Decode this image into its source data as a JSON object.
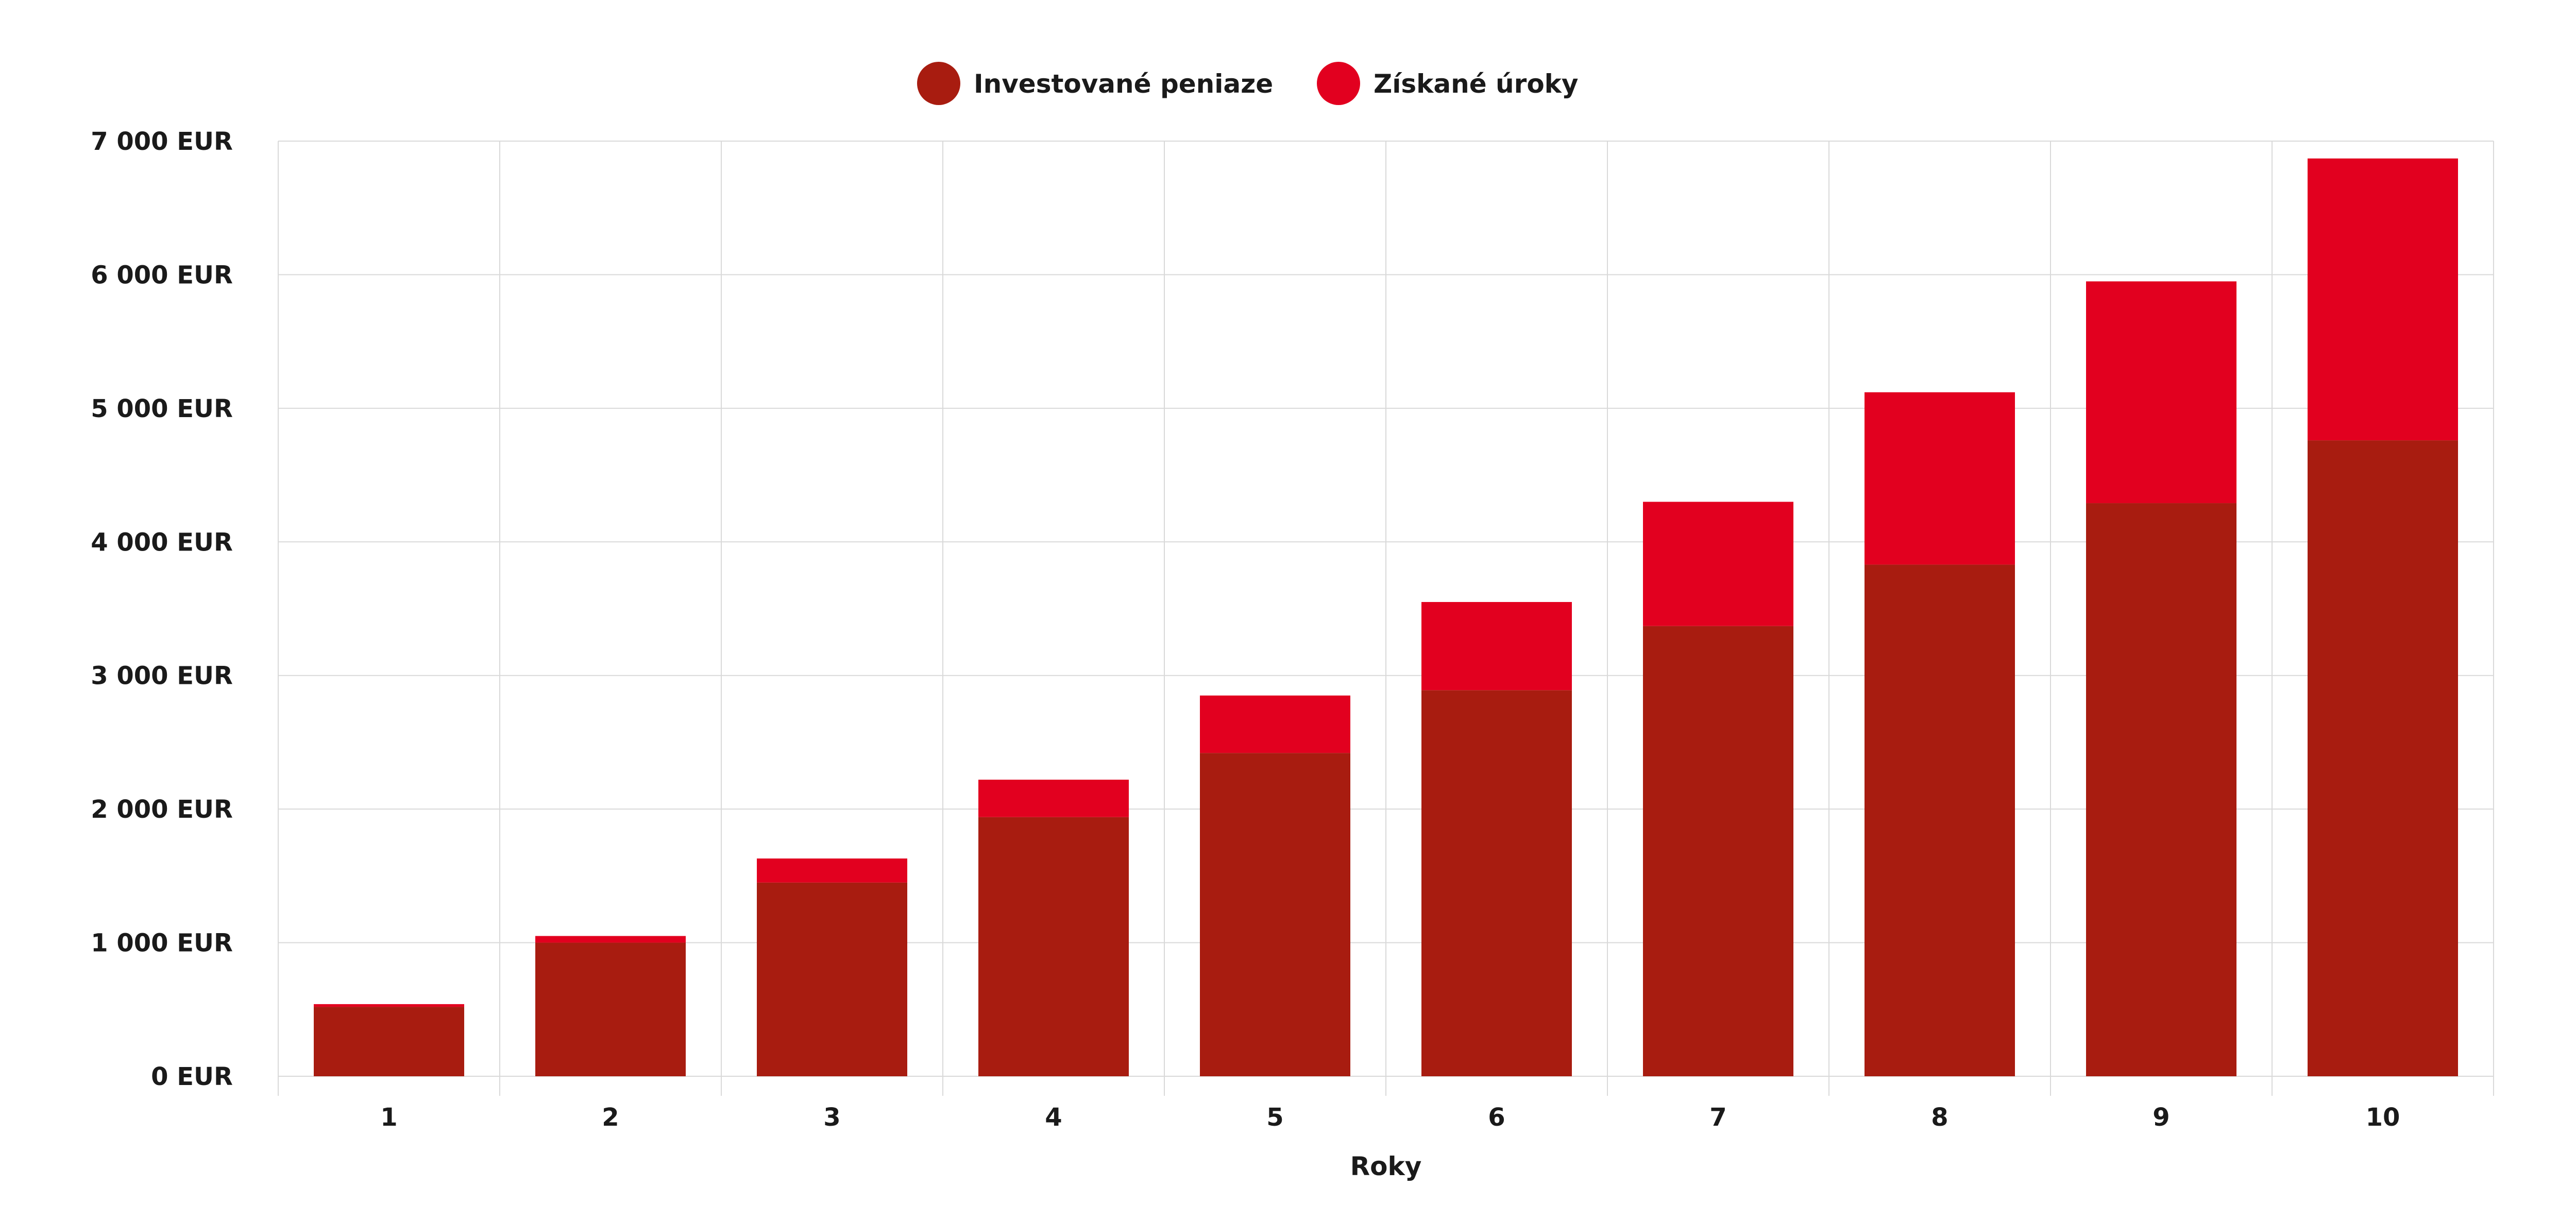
{
  "chart_data": {
    "type": "bar",
    "stacked": true,
    "categories": [
      "1",
      "2",
      "3",
      "4",
      "5",
      "6",
      "7",
      "8",
      "9",
      "10"
    ],
    "series": [
      {
        "name": "Investované peniaze",
        "color": "#a81c10",
        "values": [
          520,
          1000,
          1450,
          1940,
          2420,
          2890,
          3370,
          3830,
          4290,
          4760
        ]
      },
      {
        "name": "Získané úroky",
        "color": "#e2001f",
        "values": [
          20,
          50,
          180,
          280,
          430,
          660,
          930,
          1290,
          1660,
          2110
        ]
      }
    ],
    "xlabel": "Roky",
    "ylabel": "",
    "ylim": [
      0,
      7000
    ],
    "yticks": [
      0,
      1000,
      2000,
      3000,
      4000,
      5000,
      6000,
      7000
    ],
    "ytick_labels": [
      "0 EUR",
      "1 000 EUR",
      "2 000 EUR",
      "3 000 EUR",
      "4 000 EUR",
      "5 000 EUR",
      "6 000 EUR",
      "7 000 EUR"
    ],
    "grid": true,
    "legend_position": "top-center"
  }
}
